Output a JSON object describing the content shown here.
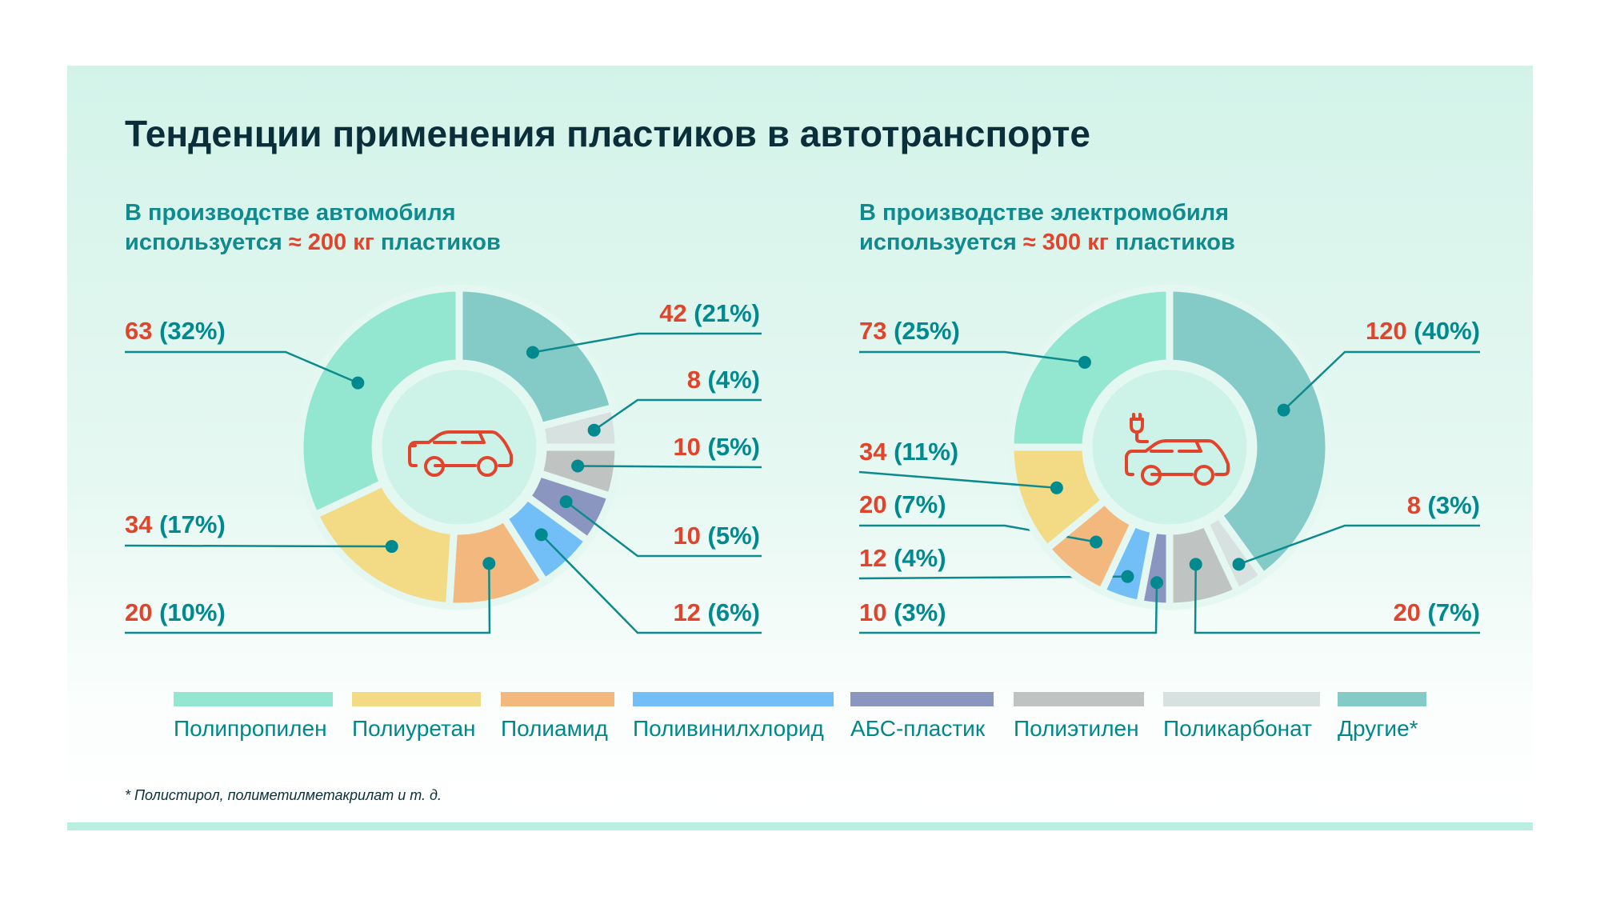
{
  "title": "Тенденции применения пластиков в автотранспорте",
  "left": {
    "sub_line1": "В производстве автомобиля",
    "sub_prefix": "используется ",
    "sub_amount": "≈ 200 кг",
    "sub_suffix": " пластиков",
    "icon": "car-icon"
  },
  "right": {
    "sub_line1": "В производстве электромобиля",
    "sub_prefix": "используется ",
    "sub_amount": "≈ 300 кг",
    "sub_suffix": " пластиков",
    "icon": "electric-car-icon"
  },
  "colors": {
    "Полипропилен": "#93e6cf",
    "Полиуретан": "#f2db84",
    "Полиамид": "#f2b87d",
    "Поливинилхлорид": "#72bff7",
    "АБС-пластик": "#8a96c0",
    "Полиэтилен": "#bfc4c3",
    "Поликарбонат": "#d7e1df",
    "Другие*": "#84cbc8",
    "value_text": "#e2432b",
    "pct_text": "#008a8f"
  },
  "chart_data": [
    {
      "type": "pie",
      "title": "В производстве автомобиля используется ≈ 200 кг пластиков",
      "unit": "кг",
      "slices": [
        {
          "name": "Другие*",
          "value": 42,
          "pct": 21,
          "value_label": "42",
          "pct_label": "(21%)"
        },
        {
          "name": "Поликарбонат",
          "value": 8,
          "pct": 4,
          "value_label": "8",
          "pct_label": "(4%)"
        },
        {
          "name": "Полиэтилен",
          "value": 10,
          "pct": 5,
          "value_label": "10",
          "pct_label": "(5%)"
        },
        {
          "name": "АБС-пластик",
          "value": 10,
          "pct": 5,
          "value_label": "10",
          "pct_label": "(5%)"
        },
        {
          "name": "Поливинилхлорид",
          "value": 12,
          "pct": 6,
          "value_label": "12",
          "pct_label": "(6%)"
        },
        {
          "name": "Полиамид",
          "value": 20,
          "pct": 10,
          "value_label": "20",
          "pct_label": "(10%)"
        },
        {
          "name": "Полиуретан",
          "value": 34,
          "pct": 17,
          "value_label": "34",
          "pct_label": "(17%)"
        },
        {
          "name": "Полипропилен",
          "value": 63,
          "pct": 32,
          "value_label": "63",
          "pct_label": "(32%)"
        }
      ]
    },
    {
      "type": "pie",
      "title": "В производстве электромобиля используется ≈ 300 кг пластиков",
      "unit": "кг",
      "slices": [
        {
          "name": "Другие*",
          "value": 120,
          "pct": 40,
          "value_label": "120",
          "pct_label": "(40%)"
        },
        {
          "name": "Поликарбонат",
          "value": 8,
          "pct": 3,
          "value_label": "8",
          "pct_label": "(3%)"
        },
        {
          "name": "Полиэтилен",
          "value": 20,
          "pct": 7,
          "value_label": "20",
          "pct_label": "(7%)"
        },
        {
          "name": "АБС-пластик",
          "value": 10,
          "pct": 3,
          "value_label": "10",
          "pct_label": "(3%)"
        },
        {
          "name": "Поливинилхлорид",
          "value": 12,
          "pct": 4,
          "value_label": "12",
          "pct_label": "(4%)"
        },
        {
          "name": "Полиамид",
          "value": 20,
          "pct": 7,
          "value_label": "20",
          "pct_label": "(7%)"
        },
        {
          "name": "Полиуретан",
          "value": 34,
          "pct": 11,
          "value_label": "34",
          "pct_label": "(11%)"
        },
        {
          "name": "Полипропилен",
          "value": 73,
          "pct": 25,
          "value_label": "73",
          "pct_label": "(25%)"
        }
      ]
    }
  ],
  "legend": [
    "Полипропилен",
    "Полиуретан",
    "Полиамид",
    "Поливинилхлорид",
    "АБС-пластик",
    "Полиэтилен",
    "Поликарбонат",
    "Другие*"
  ],
  "footnote": "* Полистирол, полиметилметакрилат и т. д."
}
